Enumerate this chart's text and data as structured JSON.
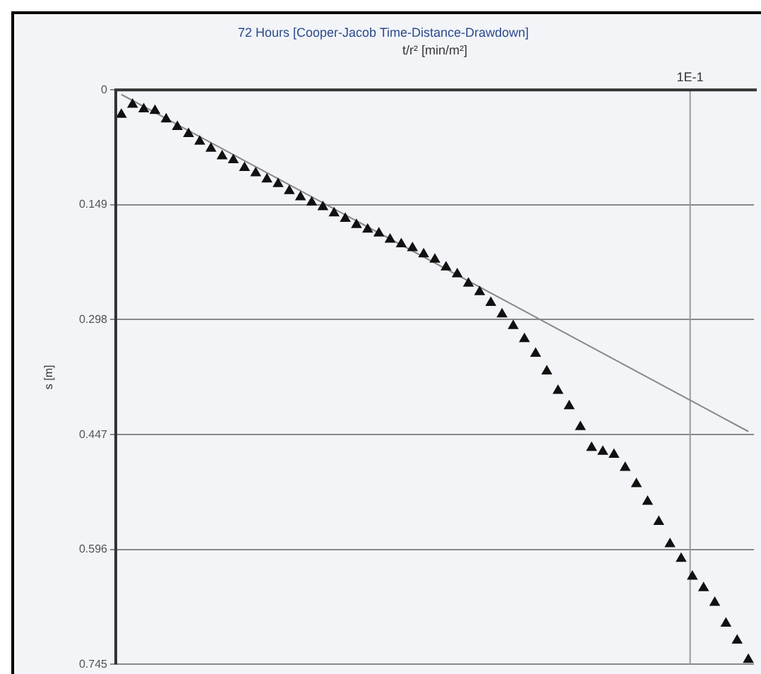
{
  "chart_data": {
    "type": "scatter",
    "title": "72 Hours [Cooper-Jacob Time-Distance-Drawdown]",
    "xlabel": "t/r² [min/m²]",
    "ylabel": "s [m]",
    "categories": [
      null,
      null,
      null,
      null,
      null,
      null,
      null,
      null,
      null,
      null,
      null,
      null,
      null,
      null,
      null,
      null,
      null,
      null,
      null,
      null,
      null,
      null,
      null,
      null,
      null,
      null,
      null,
      null,
      null,
      null,
      null,
      null,
      null,
      null,
      null,
      null,
      null,
      null,
      null,
      null,
      null,
      null,
      null,
      null,
      null,
      null,
      null,
      null,
      null,
      null,
      null,
      null,
      null,
      null,
      null,
      null,
      null
    ],
    "series": [
      {
        "color": "#111111",
        "values": [
          0.032,
          0.019,
          0.025,
          0.027,
          0.038,
          0.048,
          0.057,
          0.067,
          0.076,
          0.086,
          0.091,
          0.101,
          0.108,
          0.116,
          0.122,
          0.131,
          0.139,
          0.146,
          0.152,
          0.16,
          0.167,
          0.175,
          0.181,
          0.186,
          0.194,
          0.2,
          0.205,
          0.213,
          0.22,
          0.23,
          0.239,
          0.251,
          0.262,
          0.276,
          0.291,
          0.306,
          0.323,
          0.342,
          0.365,
          0.39,
          0.41,
          0.437,
          0.464,
          0.469,
          0.473,
          0.49,
          0.511,
          0.534,
          0.56,
          0.589,
          0.608,
          0.631,
          0.646,
          0.665,
          0.692,
          0.714,
          0.739
        ]
      },
      {
        "type": "line",
        "marker": "none",
        "color": "#888888",
        "values": [
          0.006,
          null,
          null,
          null,
          null,
          null,
          null,
          null,
          null,
          null,
          null,
          null,
          null,
          null,
          null,
          null,
          null,
          null,
          null,
          null,
          null,
          null,
          null,
          null,
          null,
          null,
          null,
          null,
          null,
          null,
          null,
          null,
          null,
          null,
          null,
          null,
          null,
          null,
          null,
          null,
          null,
          null,
          null,
          null,
          null,
          null,
          null,
          null,
          null,
          null,
          null,
          null,
          null,
          null,
          null,
          null,
          0.443
        ]
      }
    ],
    "ylim": [
      0.745,
      0
    ],
    "yticks": [
      0,
      0.149,
      0.298,
      0.447,
      0.596,
      {
        "value": 0.745,
        "label": "0.745"
      }
    ],
    "annotations": [
      "1E-1"
    ],
    "grid": "y",
    "legend": false,
    "marker": "triangle"
  }
}
